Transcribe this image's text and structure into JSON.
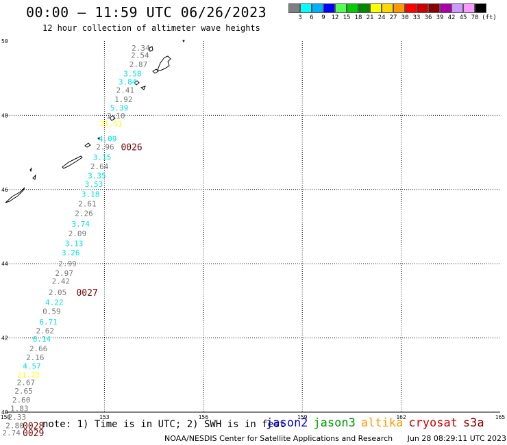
{
  "title": "00:00 — 11:59 UTC 06/26/2023",
  "subtitle": "12 hour collection of altimeter wave heights",
  "legend": {
    "unit_label": "(ft)",
    "colors": [
      "#7f7f7f",
      "#00ffff",
      "#00b0ff",
      "#0000ff",
      "#55ff55",
      "#00cc00",
      "#008800",
      "#ffff00",
      "#ffd800",
      "#ff9900",
      "#ff0000",
      "#cc0000",
      "#880000",
      "#aa00aa",
      "#cc99ff",
      "#ff99ff",
      "#000000"
    ],
    "tick_labels": [
      "3",
      "6",
      "9",
      "12",
      "15",
      "18",
      "21",
      "24",
      "27",
      "30",
      "33",
      "36",
      "39",
      "42",
      "45",
      "70"
    ]
  },
  "map": {
    "lon_range": [
      150,
      165
    ],
    "lat_range": [
      40,
      50
    ],
    "lon_labels": [
      "150",
      "153",
      "156",
      "159",
      "162",
      "165"
    ],
    "lat_labels": [
      "50",
      "48",
      "46",
      "44",
      "42",
      "40"
    ]
  },
  "observations": [
    {
      "text": "2.34",
      "lon": 154.1,
      "lat": 49.82,
      "color": "#777777"
    },
    {
      "text": "2.54",
      "lon": 154.08,
      "lat": 49.62,
      "color": "#777777"
    },
    {
      "text": "2.87",
      "lon": 154.03,
      "lat": 49.37,
      "color": "#777777"
    },
    {
      "text": "3.58",
      "lon": 153.85,
      "lat": 49.12,
      "color": "#00e0e0"
    },
    {
      "text": "3.84",
      "lon": 153.7,
      "lat": 48.9,
      "color": "#00e0e0"
    },
    {
      "text": "2.41",
      "lon": 153.63,
      "lat": 48.68,
      "color": "#777777"
    },
    {
      "text": "1.92",
      "lon": 153.58,
      "lat": 48.43,
      "color": "#777777"
    },
    {
      "text": "5.39",
      "lon": 153.45,
      "lat": 48.2,
      "color": "#00e0e0"
    },
    {
      "text": "2.10",
      "lon": 153.35,
      "lat": 47.99,
      "color": "#777777"
    },
    {
      "text": "21.51",
      "lon": 153.2,
      "lat": 47.78,
      "color": "#ffff00"
    },
    {
      "text": "4.09",
      "lon": 153.1,
      "lat": 47.37,
      "color": "#00e0e0"
    },
    {
      "text": "2.96",
      "lon": 153.02,
      "lat": 47.15,
      "color": "#777777"
    },
    {
      "text": "3.15",
      "lon": 152.93,
      "lat": 46.87,
      "color": "#00e0e0"
    },
    {
      "text": "2.64",
      "lon": 152.85,
      "lat": 46.62,
      "color": "#777777"
    },
    {
      "text": "3.35",
      "lon": 152.77,
      "lat": 46.37,
      "color": "#00e0e0"
    },
    {
      "text": "3.53",
      "lon": 152.68,
      "lat": 46.14,
      "color": "#00e0e0"
    },
    {
      "text": "3.18",
      "lon": 152.58,
      "lat": 45.88,
      "color": "#00e0e0"
    },
    {
      "text": "2.61",
      "lon": 152.48,
      "lat": 45.62,
      "color": "#777777"
    },
    {
      "text": "2.26",
      "lon": 152.38,
      "lat": 45.36,
      "color": "#777777"
    },
    {
      "text": "3.74",
      "lon": 152.28,
      "lat": 45.07,
      "color": "#00e0e0"
    },
    {
      "text": "2.09",
      "lon": 152.18,
      "lat": 44.82,
      "color": "#777777"
    },
    {
      "text": "3.13",
      "lon": 152.08,
      "lat": 44.55,
      "color": "#00e0e0"
    },
    {
      "text": "3.26",
      "lon": 151.98,
      "lat": 44.3,
      "color": "#00e0e0"
    },
    {
      "text": "2.99",
      "lon": 151.88,
      "lat": 44.0,
      "color": "#777777"
    },
    {
      "text": "2.97",
      "lon": 151.78,
      "lat": 43.75,
      "color": "#777777"
    },
    {
      "text": "2.42",
      "lon": 151.68,
      "lat": 43.53,
      "color": "#777777"
    },
    {
      "text": "2.05",
      "lon": 151.58,
      "lat": 43.23,
      "color": "#777777"
    },
    {
      "text": "4.22",
      "lon": 151.48,
      "lat": 42.96,
      "color": "#00e0e0"
    },
    {
      "text": "0.59",
      "lon": 151.4,
      "lat": 42.72,
      "color": "#777777"
    },
    {
      "text": "6.71",
      "lon": 151.3,
      "lat": 42.44,
      "color": "#00e0e0"
    },
    {
      "text": "2.62",
      "lon": 151.2,
      "lat": 42.2,
      "color": "#777777"
    },
    {
      "text": "6.14",
      "lon": 151.1,
      "lat": 41.97,
      "color": "#00e0e0"
    },
    {
      "text": "2.66",
      "lon": 151.0,
      "lat": 41.72,
      "color": "#777777"
    },
    {
      "text": "2.16",
      "lon": 150.9,
      "lat": 41.48,
      "color": "#777777"
    },
    {
      "text": "4.57",
      "lon": 150.8,
      "lat": 41.25,
      "color": "#00e0e0"
    },
    {
      "text": "21.25",
      "lon": 150.7,
      "lat": 41.01,
      "color": "#ffff00"
    },
    {
      "text": "2.67",
      "lon": 150.62,
      "lat": 40.8,
      "color": "#777777"
    },
    {
      "text": "2.65",
      "lon": 150.55,
      "lat": 40.57,
      "color": "#777777"
    },
    {
      "text": "2.60",
      "lon": 150.48,
      "lat": 40.33,
      "color": "#777777"
    },
    {
      "text": "1.83",
      "lon": 150.42,
      "lat": 40.1,
      "color": "#777777"
    },
    {
      "text": "2.33",
      "lon": 150.35,
      "lat": 39.87,
      "color": "#777777"
    },
    {
      "text": "2.80",
      "lon": 150.28,
      "lat": 39.64,
      "color": "#777777"
    },
    {
      "text": "2.74",
      "lon": 150.18,
      "lat": 39.45,
      "color": "#777777"
    }
  ],
  "time_stamps": [
    {
      "text": "0026",
      "lon": 153.5,
      "lat": 47.15,
      "color": "#770000"
    },
    {
      "text": "0027",
      "lon": 152.15,
      "lat": 43.23,
      "color": "#770000"
    },
    {
      "text": "0028",
      "lon": 150.52,
      "lat": 39.64,
      "color": "#770000"
    },
    {
      "text": "0029",
      "lon": 150.52,
      "lat": 39.45,
      "color": "#770000"
    }
  ],
  "note": "note: 1) Time is in UTC; 2) SWH is in feet",
  "satellites": [
    {
      "label": "jason2",
      "color": "#0000dd"
    },
    {
      "label": "jason3",
      "color": "#009900"
    },
    {
      "label": "altika",
      "color": "#ff9900"
    },
    {
      "label": "cryosat",
      "color": "#cc0000"
    },
    {
      "label": "s3a",
      "color": "#880000"
    }
  ],
  "footer": {
    "left": "NOAA/NESDIS Center for Satellite Applications and Research",
    "right": "Jun 28 08:29:11 UTC 2023"
  }
}
